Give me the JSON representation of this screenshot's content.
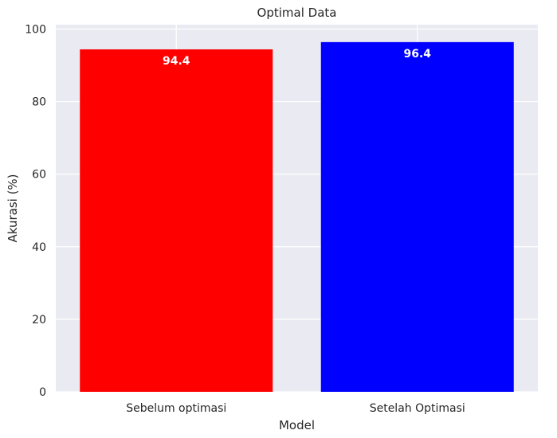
{
  "chart_data": {
    "type": "bar",
    "title": "Optimal Data",
    "xlabel": "Model",
    "ylabel": "Akurasi (%)",
    "categories": [
      "Sebelum optimasi",
      "Setelah Optimasi"
    ],
    "values": [
      94.4,
      96.4
    ],
    "value_labels": [
      "94.4",
      "96.4"
    ],
    "bar_colors": [
      "#ff0000",
      "#0000ff"
    ],
    "ylim": [
      0,
      101.2
    ],
    "yticks": [
      0,
      20,
      40,
      60,
      80,
      100
    ],
    "ytick_labels": [
      "0",
      "20",
      "40",
      "60",
      "80",
      "100"
    ],
    "grid": true,
    "background_color": "#eaeaf2",
    "grid_color": "#ffffff"
  }
}
